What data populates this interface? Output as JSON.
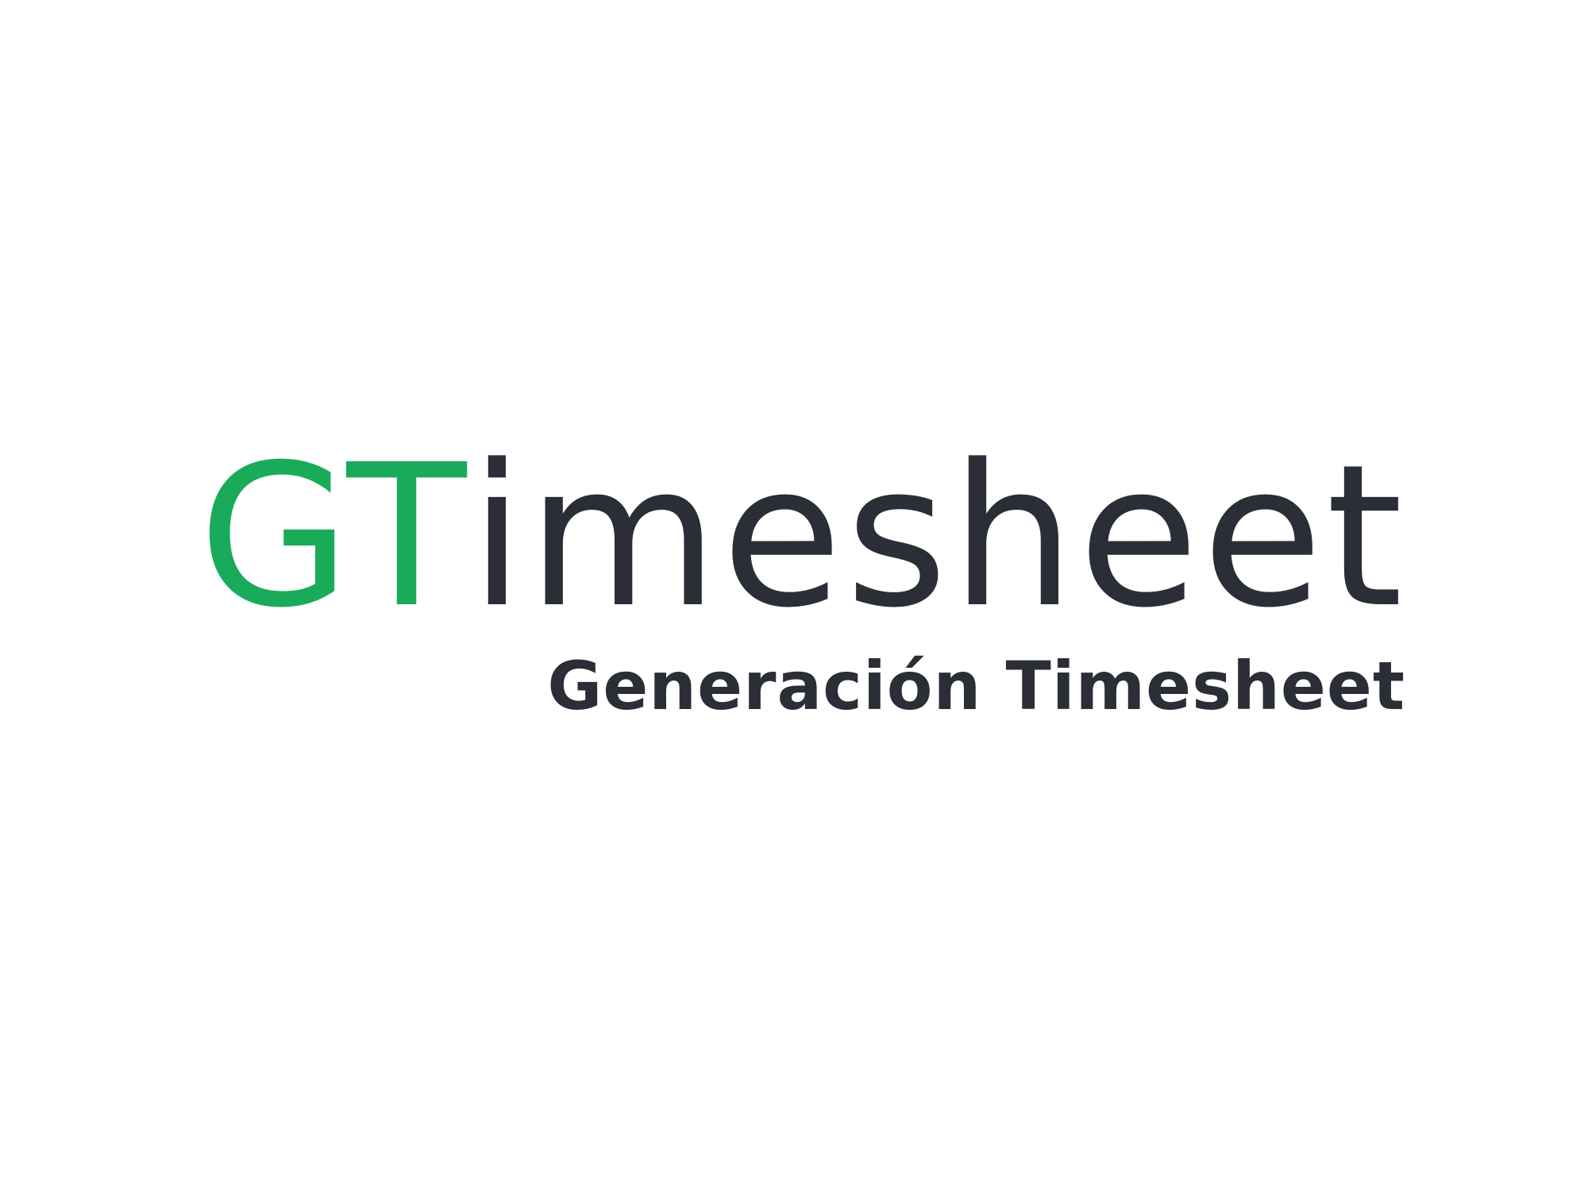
{
  "logo": {
    "wordmark_accent": "GT",
    "wordmark_main": "imesheet",
    "tagline": "Generación Timesheet"
  },
  "colors": {
    "accent": "#1aab5a",
    "main": "#2b2e37",
    "background": "#ffffff"
  }
}
